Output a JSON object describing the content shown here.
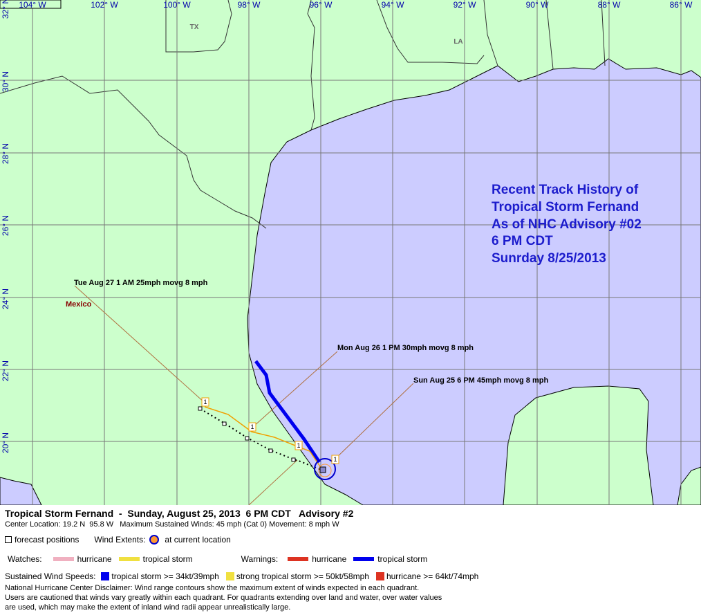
{
  "map": {
    "lon_labels": [
      "104° W",
      "102° W",
      "100° W",
      "98° W",
      "96° W",
      "94° W",
      "92° W",
      "90° W",
      "88° W",
      "86° W"
    ],
    "lat_labels": [
      "32° N",
      "30° N",
      "28° N",
      "26° N",
      "24° N",
      "22° N",
      "20° N"
    ],
    "places": [
      "TX",
      "LA",
      "Mexico"
    ],
    "annotation": [
      "Recent Track History of",
      "Tropical Storm Fernand",
      "As of NHC Advisory #02",
      "6 PM CDT",
      "Sunrday 8/25/2013"
    ],
    "track_labels": [
      "Tue Aug 27 1 AM 25mph movg 8 mph",
      "Mon Aug 26 1 PM 30mph movg 8 mph",
      "Sun Aug 25 6 PM 45mph movg 8 mph"
    ],
    "forecast_markers": [
      "1",
      "1",
      "1",
      "1"
    ]
  },
  "legend": {
    "title": "Tropical Storm Fernand  -  Sunday, August 25, 2013  6 PM CDT   Advisory #2",
    "details": "Center Location: 19.2 N  95.8 W   Maximum Sustained Winds: 45 mph (Cat 0) Movement: 8 mph W",
    "forecast": "forecast positions",
    "wind_extents": "Wind Extents:",
    "current": "at current location",
    "watches": "Watches:",
    "watch_items": [
      "hurricane",
      "tropical storm"
    ],
    "warnings": "Warnings:",
    "warning_items": [
      "hurricane",
      "tropical storm"
    ],
    "speeds_label": "Sustained Wind Speeds:",
    "speed_items": [
      "tropical storm >= 34kt/39mph",
      "strong tropical storm >= 50kt/58mph",
      "hurricane >= 64kt/74mph"
    ],
    "disclaimer": [
      "National Hurricane Center Disclaimer: Wind range contours show the maximum extent of winds expected in each quadrant.",
      "Users are cautioned that winds vary greatly within each quadrant. For quadrants extending over land and water, over water values",
      "are used, which may make the extent of inland wind radii appear unrealistically large."
    ]
  }
}
